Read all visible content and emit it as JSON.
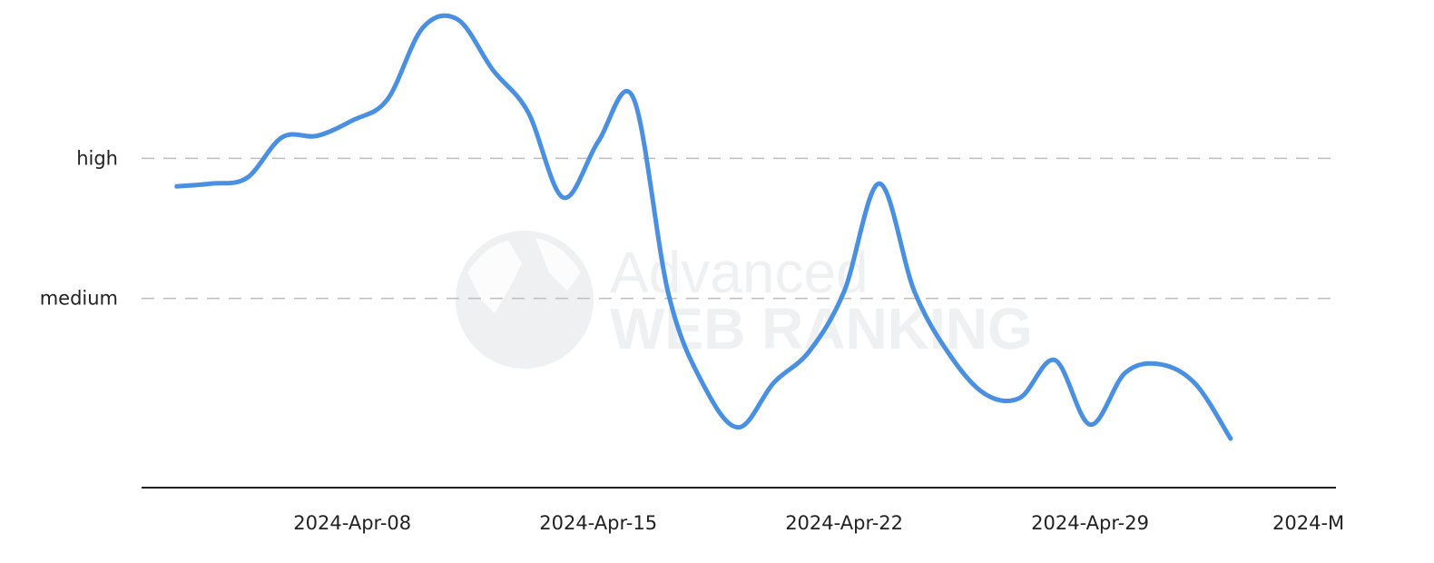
{
  "chart_data": {
    "type": "line",
    "title": "",
    "xlabel": "",
    "ylabel": "",
    "y_levels": [
      "medium",
      "high"
    ],
    "y_tick_labels": [
      {
        "label": "high",
        "value": 1.0
      },
      {
        "label": "medium",
        "value": 0.0
      }
    ],
    "ylim": [
      -1.35,
      2.0
    ],
    "x_tick_labels": [
      "2024-Apr-08",
      "2024-Apr-15",
      "2024-Apr-22",
      "2024-Apr-29",
      "2024-M"
    ],
    "xlim": [
      "2024-Apr-02",
      "2024-May-06"
    ],
    "grid": {
      "horizontal_dashed": true
    },
    "series": [
      {
        "color": "#4a90e2",
        "x": [
          "2024-Apr-03",
          "2024-Apr-04",
          "2024-Apr-05",
          "2024-Apr-06",
          "2024-Apr-07",
          "2024-Apr-08",
          "2024-Apr-09",
          "2024-Apr-10",
          "2024-Apr-11",
          "2024-Apr-12",
          "2024-Apr-13",
          "2024-Apr-14",
          "2024-Apr-15",
          "2024-Apr-16",
          "2024-Apr-17",
          "2024-Apr-18",
          "2024-Apr-19",
          "2024-Apr-20",
          "2024-Apr-21",
          "2024-Apr-22",
          "2024-Apr-23",
          "2024-Apr-24",
          "2024-Apr-25",
          "2024-Apr-26",
          "2024-Apr-27",
          "2024-Apr-28",
          "2024-Apr-29",
          "2024-Apr-30",
          "2024-May-01",
          "2024-May-02",
          "2024-May-03"
        ],
        "values": [
          0.8,
          0.82,
          0.86,
          1.15,
          1.16,
          1.27,
          1.42,
          1.93,
          1.99,
          1.63,
          1.33,
          0.72,
          1.12,
          1.43,
          0.03,
          -0.62,
          -0.92,
          -0.6,
          -0.38,
          0.05,
          0.82,
          0.05,
          -0.4,
          -0.68,
          -0.71,
          -0.44,
          -0.9,
          -0.53,
          -0.47,
          -0.61,
          -1.0
        ]
      }
    ]
  }
}
